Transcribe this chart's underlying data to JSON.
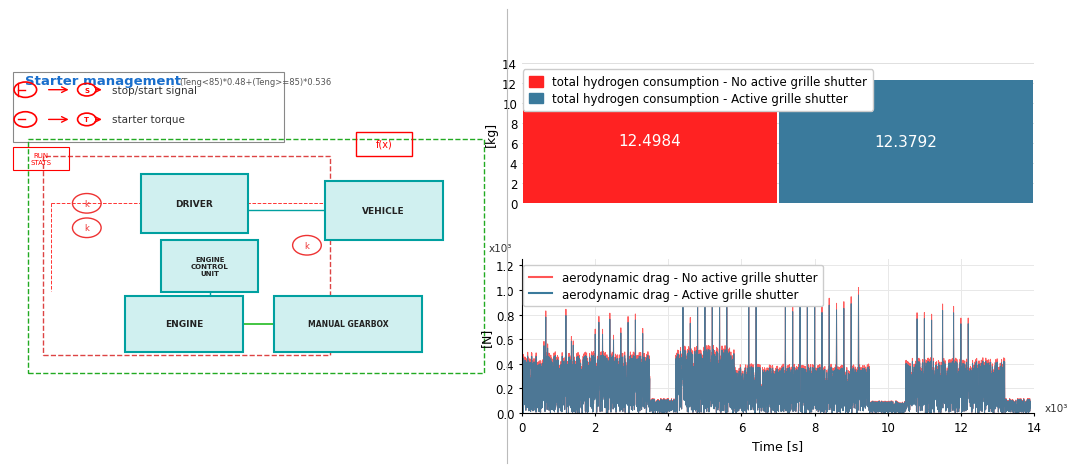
{
  "bar_values": [
    12.4984,
    12.3792
  ],
  "bar_colors": [
    "#ff2222",
    "#3a7a9c"
  ],
  "bar_labels": [
    "total hydrogen consumption - No active grille shutter",
    "total hydrogen consumption - Active grille shutter"
  ],
  "bar_text_color": "#ffffff",
  "bar_ylabel": "[kg]",
  "bar_ylim": [
    0,
    14
  ],
  "bar_yticks": [
    0,
    2,
    4,
    6,
    8,
    10,
    12,
    14
  ],
  "line_ylabel": "[N]",
  "line_xlabel": "Time [s]",
  "line_xlim_data": 13900,
  "line_ylim": [
    0,
    1.2
  ],
  "line_yticks": [
    0.0,
    0.2,
    0.4,
    0.6,
    0.8,
    1.0,
    1.2
  ],
  "line_xtick_vals": [
    0,
    2,
    4,
    6,
    8,
    10,
    12,
    14
  ],
  "line_color_no": "#ff5555",
  "line_color_active": "#3a7a9c",
  "line_label_no": "aerodynamic drag - No active grille shutter",
  "line_label_active": "aerodynamic drag - Active grille shutter",
  "diagram_title": "Starter management",
  "bar_text_fontsize": 11,
  "legend_fontsize": 8.5,
  "axis_label_fontsize": 9,
  "tick_fontsize": 8.5
}
